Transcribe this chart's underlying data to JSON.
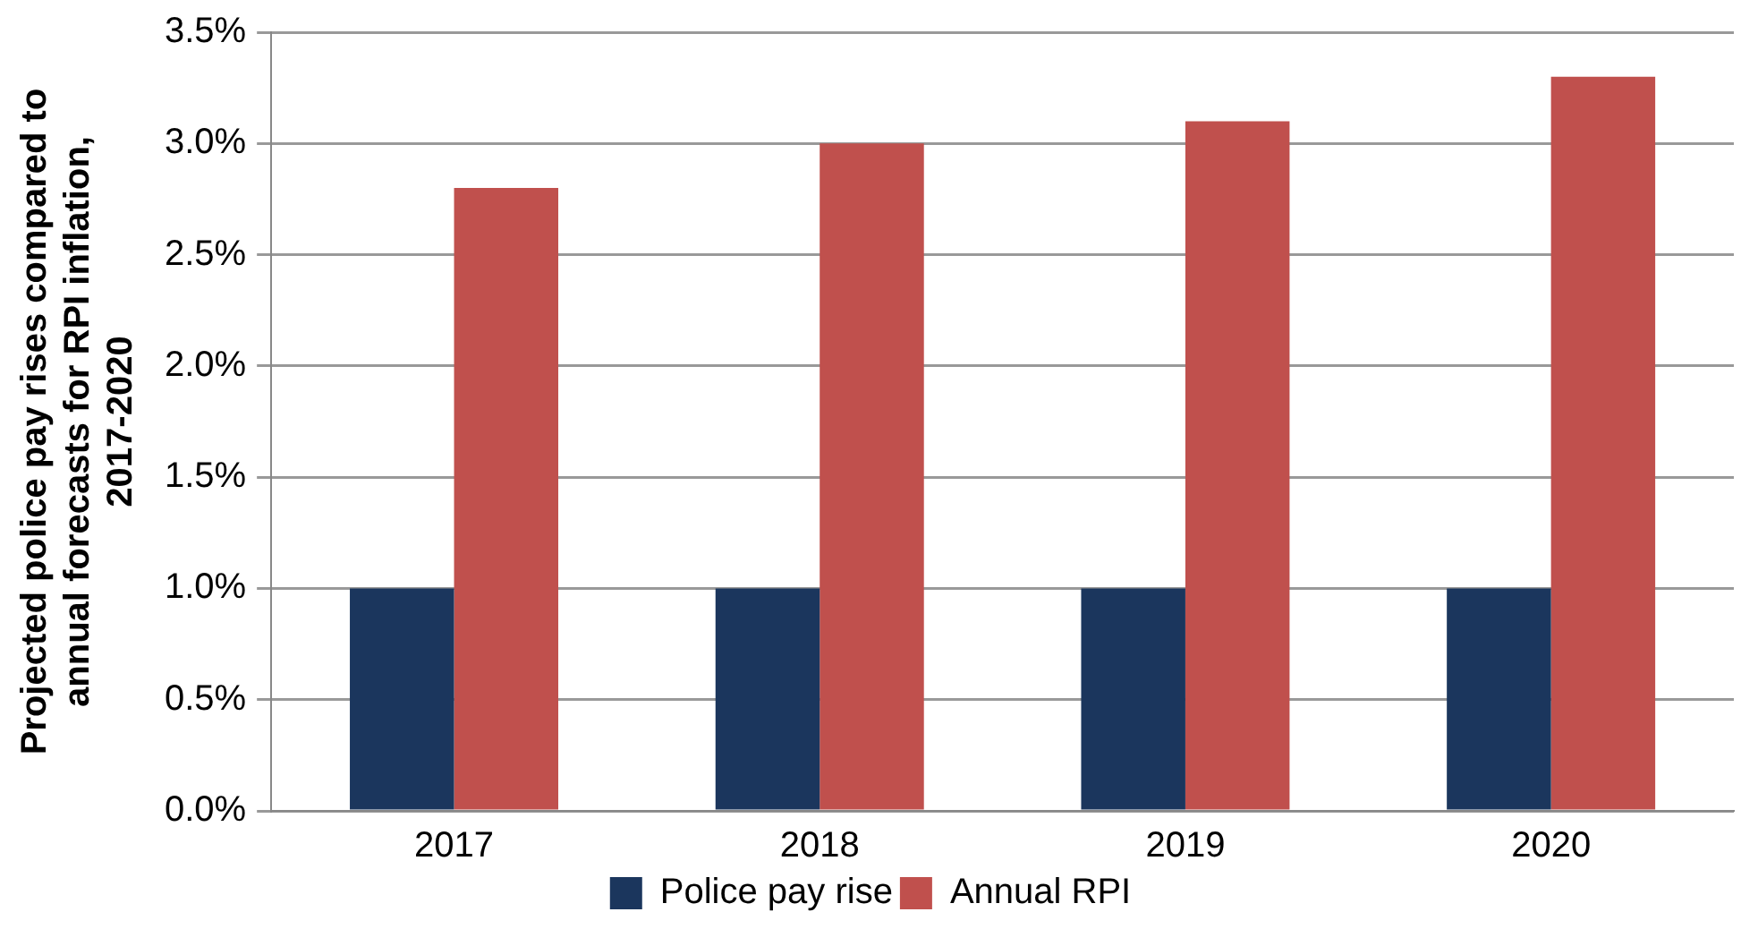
{
  "chart_data": {
    "type": "bar",
    "ylabel": "Projected police pay rises compared to annual forecasts for RPI inflation, 2017-2020",
    "categories": [
      "2017",
      "2018",
      "2019",
      "2020"
    ],
    "series": [
      {
        "name": "Police pay rise",
        "color": "#1b365d",
        "values": [
          1.0,
          1.0,
          1.0,
          1.0
        ]
      },
      {
        "name": "Annual RPI",
        "color": "#c0504d",
        "values": [
          2.8,
          3.0,
          3.1,
          3.3
        ]
      }
    ],
    "ylim": [
      0,
      3.5
    ],
    "yticks": [
      {
        "value": 0,
        "label": "0.0%"
      },
      {
        "value": 0.5,
        "label": "0.5%"
      },
      {
        "value": 1,
        "label": "1.0%"
      },
      {
        "value": 1.5,
        "label": "1.5%"
      },
      {
        "value": 2,
        "label": "2.0%"
      },
      {
        "value": 2.5,
        "label": "2.5%"
      },
      {
        "value": 3,
        "label": "3.0%"
      },
      {
        "value": 3.5,
        "label": "3.5%"
      }
    ],
    "grid": "y",
    "legend": "bottom"
  }
}
